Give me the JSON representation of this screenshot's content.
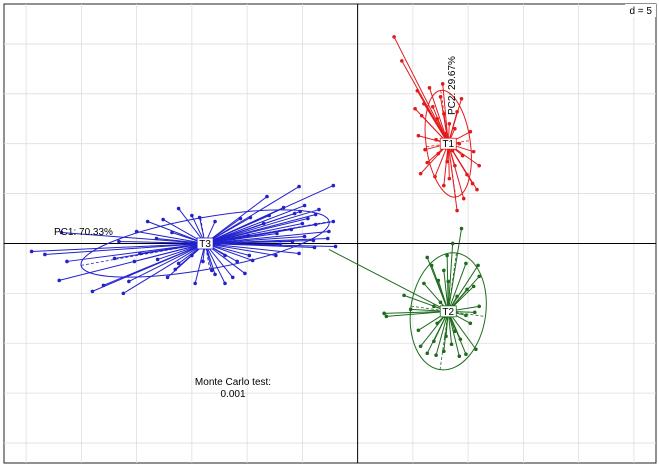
{
  "chart_data": {
    "type": "scatter",
    "title": "",
    "scale_label": "d = 5",
    "xlabel": "PC1: 70.33%",
    "ylabel": "PC2: 29.67%",
    "annotation": {
      "line1": "Monte Carlo test:",
      "line2": "0.001"
    },
    "grid": true,
    "xlim": [
      -32,
      27
    ],
    "ylim": [
      -22,
      24
    ],
    "grid_step": 5,
    "colors": {
      "T1": "#e31a1c",
      "T2": "#1e6b1e",
      "T3": "#2222cc",
      "axis": "#000000",
      "grid": "#dddddd",
      "link": "#1e6b1e"
    },
    "series": [
      {
        "name": "T1",
        "centroid": [
          8.2,
          10.0
        ],
        "ellipse": {
          "rx": 2.0,
          "ry": 5.4,
          "angle": -8
        },
        "points": [
          [
            3.3,
            20.7
          ],
          [
            4.0,
            18.3
          ],
          [
            5.4,
            15.3
          ],
          [
            6.8,
            13.7
          ],
          [
            7.2,
            12.5
          ],
          [
            5.5,
            10.8
          ],
          [
            5.8,
            12.8
          ],
          [
            6.0,
            14.0
          ],
          [
            6.5,
            15.6
          ],
          [
            7.5,
            14.7
          ],
          [
            7.8,
            13.0
          ],
          [
            8.3,
            12.0
          ],
          [
            8.8,
            11.5
          ],
          [
            9.0,
            13.2
          ],
          [
            9.4,
            14.5
          ],
          [
            9.2,
            10.0
          ],
          [
            8.8,
            7.8
          ],
          [
            8.3,
            6.5
          ],
          [
            7.8,
            5.8
          ],
          [
            7.0,
            6.7
          ],
          [
            6.3,
            8.1
          ],
          [
            6.1,
            9.4
          ],
          [
            5.7,
            7.0
          ],
          [
            7.3,
            9.0
          ],
          [
            8.1,
            8.2
          ],
          [
            9.5,
            8.8
          ],
          [
            10.2,
            11.2
          ],
          [
            10.5,
            9.2
          ],
          [
            9.9,
            6.9
          ],
          [
            10.4,
            6.0
          ],
          [
            9.6,
            4.5
          ],
          [
            10.8,
            5.4
          ],
          [
            11.0,
            7.8
          ],
          [
            9.0,
            3.3
          ],
          [
            5.2,
            13.5
          ],
          [
            7.7,
            16.0
          ],
          [
            7.1,
            10.4
          ],
          [
            8.0,
            11.0
          ],
          [
            8.6,
            9.3
          ]
        ]
      },
      {
        "name": "T2",
        "centroid": [
          8.2,
          -6.8
        ],
        "ellipse": {
          "rx": 3.4,
          "ry": 5.9,
          "angle": 8
        },
        "points": [
          [
            9.4,
            1.5
          ],
          [
            8.6,
            0.0
          ],
          [
            9.8,
            -2.0
          ],
          [
            10.9,
            -2.2
          ],
          [
            11.0,
            -3.3
          ],
          [
            10.5,
            -4.3
          ],
          [
            11.0,
            -6.3
          ],
          [
            9.8,
            -7.2
          ],
          [
            10.2,
            -8.0
          ],
          [
            8.8,
            -8.8
          ],
          [
            9.3,
            -9.6
          ],
          [
            8.5,
            -10.1
          ],
          [
            7.8,
            -10.8
          ],
          [
            7.1,
            -11.2
          ],
          [
            6.3,
            -11.0
          ],
          [
            5.7,
            -10.3
          ],
          [
            6.9,
            -9.8
          ],
          [
            8.0,
            -9.3
          ],
          [
            9.8,
            -11.1
          ],
          [
            10.7,
            -10.6
          ],
          [
            9.2,
            -11.3
          ],
          [
            2.6,
            -7.3
          ],
          [
            2.4,
            -7.0
          ],
          [
            4.2,
            -5.2
          ],
          [
            6.0,
            -4.0
          ],
          [
            7.3,
            -3.7
          ],
          [
            7.8,
            -2.7
          ],
          [
            8.1,
            -1.2
          ],
          [
            6.3,
            -1.4
          ],
          [
            6.7,
            -2.2
          ],
          [
            6.9,
            -6.3
          ],
          [
            7.2,
            -8.0
          ],
          [
            7.9,
            -7.3
          ],
          [
            9.0,
            -5.3
          ],
          [
            7.5,
            -5.9
          ],
          [
            8.2,
            -3.8
          ],
          [
            9.9,
            -4.6
          ],
          [
            4.8,
            -6.6
          ],
          [
            5.5,
            -8.7
          ],
          [
            10.6,
            -6.9
          ]
        ]
      },
      {
        "name": "T3",
        "centroid": [
          -13.8,
          0.0
        ],
        "ellipse": {
          "rx": 11.4,
          "ry": 2.6,
          "angle": -10
        },
        "points": [
          [
            -26.8,
            1.1
          ],
          [
            -28.3,
            -1.1
          ],
          [
            -29.5,
            -0.8
          ],
          [
            -26.3,
            -1.8
          ],
          [
            -27.0,
            -3.7
          ],
          [
            -23.0,
            -4.2
          ],
          [
            -21.2,
            -5.0
          ],
          [
            -20.7,
            -3.8
          ],
          [
            -17.2,
            -3.4
          ],
          [
            -14.7,
            -4.0
          ],
          [
            -12.9,
            -3.1
          ],
          [
            -12.0,
            -4.0
          ],
          [
            -11.3,
            -3.4
          ],
          [
            -10.9,
            -1.8
          ],
          [
            -9.8,
            -1.2
          ],
          [
            -9.5,
            -1.7
          ],
          [
            -14.0,
            -1.8
          ],
          [
            -15.0,
            -1.2
          ],
          [
            -16.2,
            -2.0
          ],
          [
            -18.1,
            -1.6
          ],
          [
            -19.7,
            -1.0
          ],
          [
            -20.2,
            -1.8
          ],
          [
            -22.0,
            -1.5
          ],
          [
            -21.6,
            0.2
          ],
          [
            -20.0,
            1.2
          ],
          [
            -18.2,
            0.5
          ],
          [
            -16.8,
            1.1
          ],
          [
            -17.6,
            2.4
          ],
          [
            -19.0,
            2.2
          ],
          [
            -15.0,
            2.8
          ],
          [
            -16.2,
            3.5
          ],
          [
            -14.3,
            2.6
          ],
          [
            -12.9,
            2.2
          ],
          [
            -10.6,
            2.5
          ],
          [
            -8.5,
            2.0
          ],
          [
            -8.0,
            2.8
          ],
          [
            -5.0,
            2.0
          ],
          [
            -4.5,
            2.5
          ],
          [
            -3.8,
            1.9
          ],
          [
            -2.2,
            2.2
          ],
          [
            -2.6,
            1.2
          ],
          [
            -4.8,
            0.7
          ],
          [
            -4.0,
            0.3
          ],
          [
            -5.9,
            0.2
          ],
          [
            -7.0,
            -0.1
          ],
          [
            -2.7,
            0.5
          ],
          [
            -2.0,
            -0.3
          ],
          [
            -3.9,
            -0.4
          ],
          [
            -5.3,
            -1.0
          ],
          [
            -7.4,
            -1.2
          ],
          [
            -9.9,
            0.8
          ],
          [
            -11.2,
            0.5
          ],
          [
            -12.4,
            0.2
          ],
          [
            -8.2,
            4.7
          ],
          [
            -6.7,
            3.6
          ],
          [
            -5.7,
            3.0
          ],
          [
            -4.8,
            3.8
          ],
          [
            -3.5,
            3.4
          ],
          [
            -5.3,
            5.7
          ],
          [
            -9.7,
            2.6
          ],
          [
            -7.3,
            1.0
          ],
          [
            -12.0,
            -1.2
          ],
          [
            -13.2,
            -2.7
          ],
          [
            -24.0,
            -4.8
          ],
          [
            -2.2,
            5.8
          ],
          [
            -5.2,
            3.2
          ],
          [
            -3.8,
            2.9
          ],
          [
            -6.0,
            1.4
          ],
          [
            -16.5,
            -2.6
          ],
          [
            -10.2,
            -3.0
          ]
        ]
      }
    ],
    "link": {
      "from": "T2",
      "to_point": [
        -2.6,
        -0.6
      ]
    }
  }
}
